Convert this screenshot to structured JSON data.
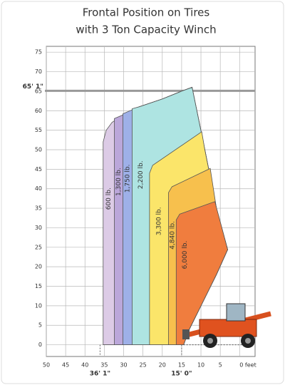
{
  "chart_data": {
    "type": "zones",
    "title": [
      "Frontal Position on Tires",
      "with 3 Ton Capacity Winch"
    ],
    "xlim": [
      50,
      -4
    ],
    "ylim": [
      -3,
      76.5
    ],
    "xticks": [
      50,
      45,
      40,
      35,
      30,
      25,
      20,
      15,
      10,
      5,
      {
        "value": 0,
        "label": "0 feet"
      }
    ],
    "yticks": [
      0,
      5,
      10,
      15,
      20,
      25,
      30,
      35,
      40,
      45,
      50,
      55,
      60,
      65,
      70,
      75
    ],
    "grid": true,
    "height_marker": {
      "label": "65' 1\"",
      "value": 65.1
    },
    "reach_markers": [
      {
        "label": "36' 1\"",
        "value": 36.1
      },
      {
        "label": "15' 0\"",
        "value": 15
      }
    ],
    "zones": [
      {
        "label": "600 lb.",
        "color": "#dccbe6",
        "points": [
          [
            35.3,
            0
          ],
          [
            35.3,
            52
          ],
          [
            34.5,
            55
          ],
          [
            33,
            57
          ],
          [
            30,
            59
          ],
          [
            26,
            61
          ],
          [
            20,
            63
          ],
          [
            15,
            65
          ],
          [
            12.3,
            66
          ],
          [
            9,
            50
          ],
          [
            6,
            35
          ],
          [
            3.1,
            24.4
          ],
          [
            6,
            18
          ],
          [
            10,
            10
          ],
          [
            13,
            4
          ],
          [
            14.5,
            0
          ]
        ]
      },
      {
        "label": "1,300 lb.",
        "color": "#bba7da",
        "points": [
          [
            32.4,
            0
          ],
          [
            32.4,
            58
          ],
          [
            30,
            59
          ],
          [
            26,
            61
          ],
          [
            20,
            63
          ],
          [
            15,
            65
          ],
          [
            12.3,
            66
          ],
          [
            9,
            50
          ],
          [
            6,
            35
          ],
          [
            3.1,
            24.4
          ],
          [
            6,
            18
          ],
          [
            10,
            10
          ],
          [
            13,
            4
          ],
          [
            14.5,
            0
          ]
        ]
      },
      {
        "label": "1,750 lb.",
        "color": "#9eb0e8",
        "points": [
          [
            30.2,
            0
          ],
          [
            30.2,
            59.2
          ],
          [
            26,
            61
          ],
          [
            20,
            63
          ],
          [
            15,
            65
          ],
          [
            12.3,
            66
          ],
          [
            9,
            50
          ],
          [
            6,
            35
          ],
          [
            3.1,
            24.4
          ],
          [
            6,
            18
          ],
          [
            10,
            10
          ],
          [
            13,
            4
          ],
          [
            14.5,
            0
          ]
        ]
      },
      {
        "label": "2,200 lb.",
        "color": "#aee4e2",
        "points": [
          [
            27.8,
            0
          ],
          [
            27.8,
            60.5
          ],
          [
            26,
            61
          ],
          [
            20,
            63
          ],
          [
            15,
            65
          ],
          [
            12.3,
            66
          ],
          [
            9,
            50
          ],
          [
            6,
            35
          ],
          [
            3.1,
            24.4
          ],
          [
            6,
            18
          ],
          [
            10,
            10
          ],
          [
            13,
            4
          ],
          [
            14.5,
            0
          ]
        ]
      },
      {
        "label": "3,300 lb.",
        "color": "#fbe56a",
        "points": [
          [
            23.3,
            0
          ],
          [
            23.3,
            44
          ],
          [
            22.5,
            46
          ],
          [
            9.8,
            54.6
          ],
          [
            9,
            50
          ],
          [
            6,
            35
          ],
          [
            3.1,
            24.4
          ],
          [
            6,
            18
          ],
          [
            10,
            10
          ],
          [
            13,
            4
          ],
          [
            14.5,
            0
          ]
        ]
      },
      {
        "label": "4,840 lb.",
        "color": "#f7c04d",
        "points": [
          [
            18.4,
            0
          ],
          [
            18.4,
            39
          ],
          [
            17.5,
            40.5
          ],
          [
            7.6,
            45.2
          ],
          [
            6,
            35
          ],
          [
            3.1,
            24.4
          ],
          [
            6,
            18
          ],
          [
            10,
            10
          ],
          [
            13,
            4
          ],
          [
            14.5,
            0
          ]
        ]
      },
      {
        "label": "6,000 lb.",
        "color": "#f07d3e",
        "points": [
          [
            16.4,
            0
          ],
          [
            16.4,
            32
          ],
          [
            15.5,
            33.5
          ],
          [
            6.4,
            36.7
          ],
          [
            3.1,
            24.4
          ],
          [
            6,
            18
          ],
          [
            10,
            10
          ],
          [
            13,
            4
          ],
          [
            14.5,
            0
          ]
        ]
      }
    ]
  }
}
